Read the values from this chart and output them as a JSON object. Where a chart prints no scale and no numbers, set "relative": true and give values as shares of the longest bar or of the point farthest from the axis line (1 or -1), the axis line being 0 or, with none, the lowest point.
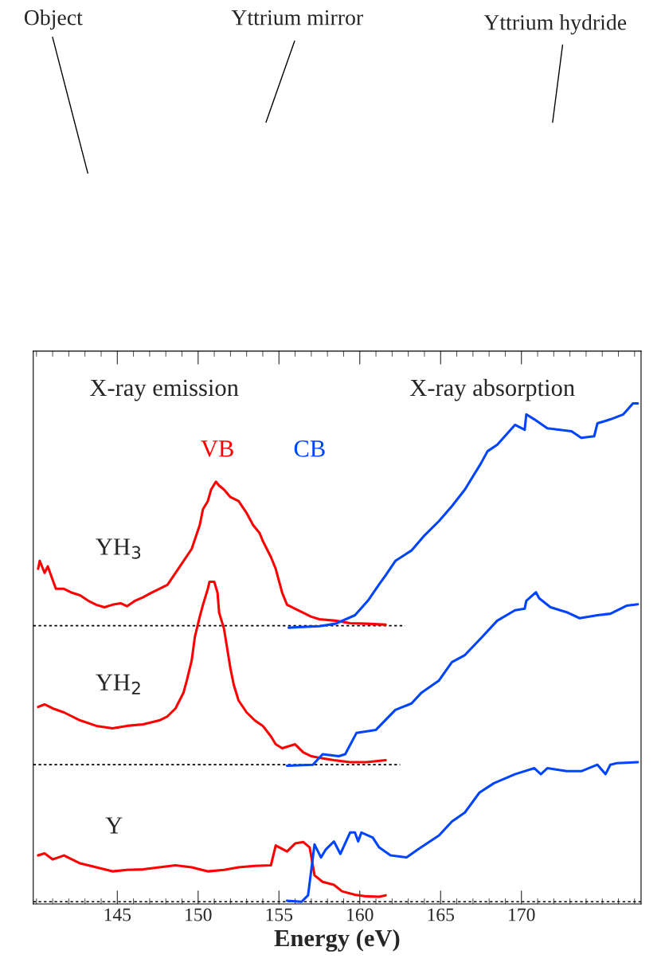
{
  "chart_data": {
    "type": "line",
    "relative": true,
    "xlabel": "Energy (eV)",
    "xlim": [
      139.8,
      177.4
    ],
    "xticks": [
      145,
      150,
      155,
      160,
      165,
      170
    ],
    "legend": false,
    "grid": false,
    "marker": "none",
    "line_style": "solid",
    "tick_labels": "x",
    "annotations": [
      "Object",
      "Yttrium mirror",
      "Yttrium hydride",
      "X-ray emission",
      "X-ray absorption",
      "YH$_{3}$",
      "YH$_{2}$",
      "Y"
    ],
    "series": [
      {
        "type": "line",
        "line_style": "dotted",
        "color": "#000000",
        "x": [
          139.8,
          162.8
        ],
        "values": [
          0.554,
          0.554
        ]
      },
      {
        "type": "line",
        "line_style": "dotted",
        "color": "#000000",
        "x": [
          139.8,
          162.5
        ],
        "values": [
          0.275,
          0.275
        ]
      },
      {
        "type": "line",
        "line_style": "dotted",
        "color": "#000000",
        "x": [
          139.8,
          177.4
        ],
        "values": [
          0.0,
          0.0
        ]
      },
      {
        "name": "VB",
        "color": "#ff0000",
        "x": [
          140.1,
          140.2,
          140.5,
          140.7,
          141.2,
          141.7,
          142.2,
          142.7,
          143.2,
          143.7,
          144.2,
          144.7,
          145.2,
          145.6,
          146.1,
          146.6,
          147.1,
          147.6,
          148.1,
          148.6,
          149.1,
          149.6,
          150.1,
          150.3,
          150.6,
          150.8,
          151.1,
          151.3,
          151.6,
          152.0,
          152.5,
          153.0,
          153.4,
          153.8,
          154.0,
          154.5,
          154.8,
          155.0,
          155.2,
          155.5,
          156.0,
          156.5,
          157.0,
          157.5,
          158.5,
          159.4,
          160.4,
          161.6
        ],
        "values": [
          0.668,
          0.684,
          0.66,
          0.673,
          0.628,
          0.628,
          0.62,
          0.615,
          0.604,
          0.596,
          0.591,
          0.596,
          0.599,
          0.593,
          0.604,
          0.611,
          0.62,
          0.628,
          0.636,
          0.66,
          0.684,
          0.708,
          0.756,
          0.788,
          0.804,
          0.827,
          0.843,
          0.835,
          0.827,
          0.812,
          0.804,
          0.78,
          0.756,
          0.74,
          0.724,
          0.692,
          0.668,
          0.644,
          0.62,
          0.596,
          0.588,
          0.58,
          0.572,
          0.567,
          0.564,
          0.559,
          0.558,
          0.556
        ]
      },
      {
        "color": "#ff0000",
        "x": [
          140.1,
          140.5,
          141.0,
          141.7,
          142.7,
          143.7,
          144.7,
          145.6,
          146.6,
          147.6,
          148.1,
          148.6,
          149.1,
          149.3,
          149.6,
          149.8,
          150.1,
          150.3,
          150.6,
          150.7,
          151.0,
          151.2,
          151.3,
          151.6,
          151.8,
          152.0,
          152.2,
          152.5,
          153.0,
          153.5,
          154.0,
          154.5,
          154.8,
          155.2,
          156.0,
          156.5,
          157.0,
          157.5,
          158.4,
          159.4,
          160.4,
          161.6
        ],
        "values": [
          0.391,
          0.396,
          0.388,
          0.38,
          0.364,
          0.353,
          0.348,
          0.353,
          0.356,
          0.364,
          0.372,
          0.388,
          0.42,
          0.444,
          0.484,
          0.532,
          0.572,
          0.596,
          0.628,
          0.642,
          0.642,
          0.62,
          0.58,
          0.548,
          0.508,
          0.468,
          0.436,
          0.404,
          0.38,
          0.364,
          0.353,
          0.332,
          0.316,
          0.308,
          0.316,
          0.3,
          0.292,
          0.289,
          0.284,
          0.28,
          0.28,
          0.284
        ]
      },
      {
        "color": "#ff0000",
        "x": [
          140.1,
          140.5,
          141.0,
          141.7,
          142.7,
          143.7,
          144.7,
          145.6,
          146.6,
          147.6,
          148.6,
          149.6,
          150.6,
          151.6,
          152.5,
          153.5,
          154.5,
          154.8,
          155.5,
          156.0,
          156.5,
          156.9,
          157.2,
          157.7,
          158.4,
          158.9,
          159.7,
          160.4,
          161.2,
          161.6
        ],
        "values": [
          0.093,
          0.097,
          0.085,
          0.093,
          0.077,
          0.069,
          0.061,
          0.064,
          0.065,
          0.069,
          0.073,
          0.069,
          0.061,
          0.064,
          0.069,
          0.072,
          0.073,
          0.113,
          0.101,
          0.117,
          0.12,
          0.109,
          0.053,
          0.04,
          0.034,
          0.021,
          0.014,
          0.011,
          0.01,
          0.013
        ]
      },
      {
        "name": "CB",
        "color": "#0044ff",
        "x": [
          155.6,
          156.2,
          157.5,
          158.5,
          159.7,
          160.5,
          161.2,
          161.6,
          162.2,
          163.2,
          164.0,
          164.9,
          165.7,
          166.5,
          166.8,
          167.5,
          167.9,
          168.5,
          169.6,
          170.2,
          170.3,
          170.8,
          171.6,
          173.1,
          173.7,
          174.5,
          174.7,
          175.5,
          176.3,
          176.9,
          177.2
        ],
        "values": [
          0.55,
          0.551,
          0.553,
          0.558,
          0.575,
          0.604,
          0.637,
          0.655,
          0.684,
          0.705,
          0.735,
          0.764,
          0.794,
          0.827,
          0.843,
          0.88,
          0.904,
          0.917,
          0.957,
          0.947,
          0.978,
          0.968,
          0.95,
          0.944,
          0.931,
          0.934,
          0.96,
          0.968,
          0.978,
          1.0,
          1.0
        ]
      },
      {
        "color": "#0044ff",
        "x": [
          155.5,
          157.1,
          157.7,
          158.7,
          159.1,
          159.8,
          161.0,
          162.2,
          163.2,
          163.8,
          164.9,
          165.7,
          166.5,
          167.5,
          168.5,
          169.6,
          170.2,
          170.3,
          170.9,
          171.1,
          171.8,
          172.8,
          173.6,
          174.7,
          175.5,
          176.5,
          177.2
        ],
        "values": [
          0.273,
          0.275,
          0.296,
          0.292,
          0.296,
          0.339,
          0.345,
          0.385,
          0.398,
          0.419,
          0.444,
          0.481,
          0.495,
          0.529,
          0.564,
          0.585,
          0.588,
          0.604,
          0.621,
          0.609,
          0.591,
          0.581,
          0.569,
          0.575,
          0.578,
          0.594,
          0.597
        ]
      },
      {
        "color": "#0044ff",
        "x": [
          155.5,
          156.4,
          156.8,
          157.2,
          157.6,
          157.9,
          158.4,
          158.8,
          159.4,
          159.7,
          159.9,
          160.1,
          160.8,
          161.2,
          161.9,
          162.9,
          163.6,
          164.9,
          165.7,
          166.5,
          167.4,
          168.3,
          169.6,
          170.8,
          171.2,
          171.6,
          172.8,
          173.7,
          174.7,
          175.2,
          175.5,
          175.9,
          177.2
        ],
        "values": [
          0.002,
          0.0,
          0.013,
          0.115,
          0.089,
          0.105,
          0.121,
          0.096,
          0.139,
          0.139,
          0.121,
          0.139,
          0.129,
          0.109,
          0.093,
          0.089,
          0.105,
          0.133,
          0.161,
          0.179,
          0.219,
          0.238,
          0.256,
          0.268,
          0.256,
          0.268,
          0.262,
          0.262,
          0.275,
          0.256,
          0.275,
          0.278,
          0.28
        ]
      }
    ]
  }
}
